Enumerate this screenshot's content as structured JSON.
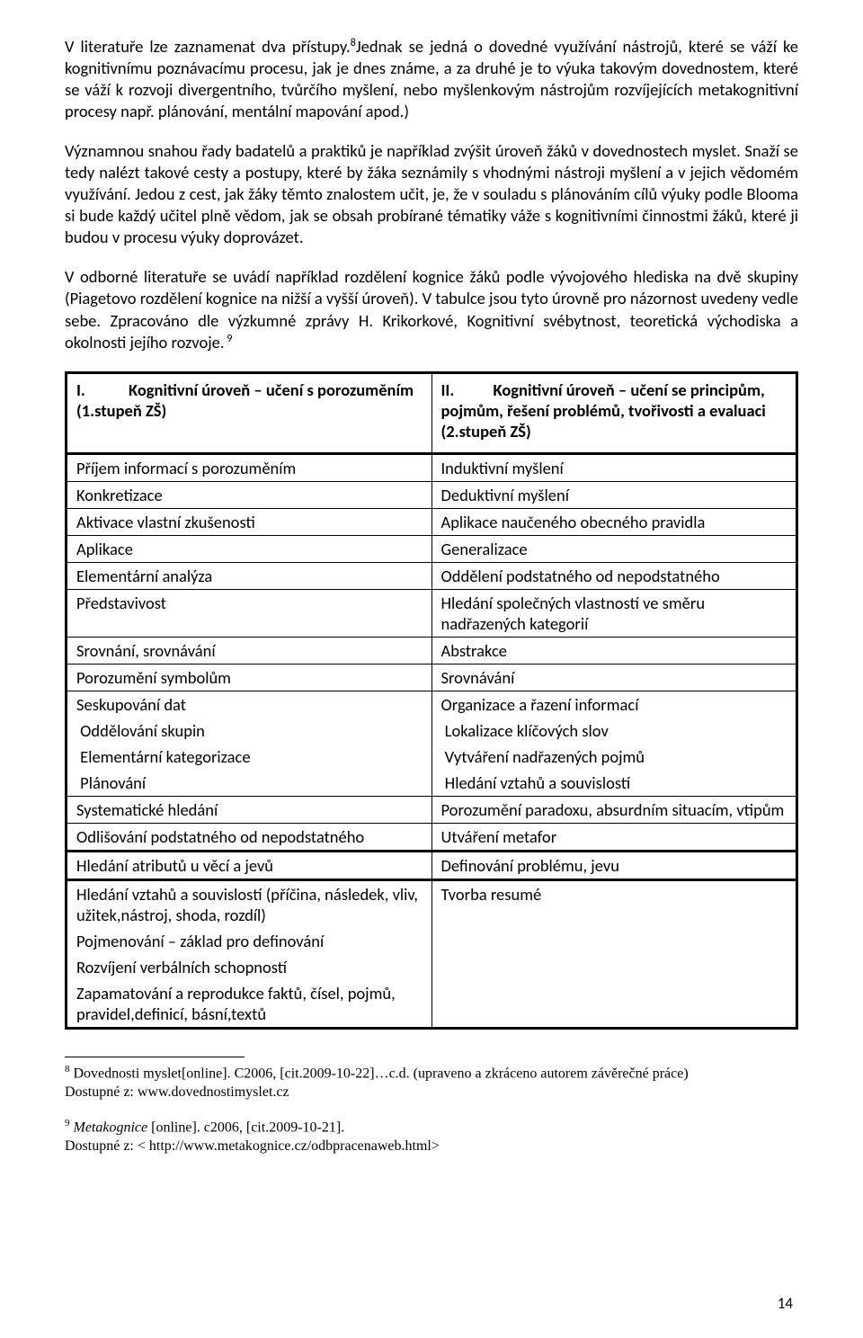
{
  "paragraphs": {
    "p1a": " V literatuře lze zaznamenat dva přístupy.",
    "p1sup": "8",
    "p1b": "Jednak se jedná o dovedné využívání nástrojů, které se váží ke kognitivnímu poznávacímu procesu, jak je dnes známe, a za druhé je to výuka takovým dovednostem, které se váží k rozvoji divergentního, tvůrčího myšlení, nebo myšlenkovým nástrojům rozvíjejících metakognitivní procesy např. plánování, mentální mapování apod.)",
    "p2": " Významnou snahou řady badatelů a praktiků je například zvýšit úroveň žáků v dovednostech myslet. Snaží se tedy nalézt takové cesty a postupy, které by žáka seznámily s vhodnými nástroji myšlení a v jejich vědomém využívání. Jedou z cest, jak žáky těmto znalostem učit, je, že v souladu s plánováním cílů výuky podle Blooma si bude každý učitel plně vědom, jak se obsah probírané tématiky váže s kognitivními činnostmi žáků, které ji budou v procesu výuky doprovázet.",
    "p3a": " V odborné literatuře se uvádí například rozdělení kognice žáků podle vývojového hlediska na dvě skupiny (Piagetovo rozdělení kognice na nižší a vyšší úroveň). V tabulce jsou tyto úrovně pro názornost uvedeny vedle sebe. Zpracováno dle výzkumné zprávy H. Krikorkové, Kognitivní svébytnost, teoretická východiska a okolnosti jejího rozvoje.",
    "p3sup": " 9"
  },
  "table": {
    "header": {
      "left_roman": "I.",
      "left_title": "Kognitivní úroveň – učení s porozuměním (1.stupeň ZŠ)",
      "right_roman": "II.",
      "right_title": "Kognitivní úroveň – učení se principům, pojmům, řešení problémů, tvořivosti a evaluaci (2.stupeň ZŠ)"
    },
    "rows": [
      {
        "l": "Příjem informací s porozuměním",
        "r": "Induktivní myšlení"
      },
      {
        "l": "Konkretizace",
        "r": "Deduktivní myšlení"
      },
      {
        "l": "Aktivace vlastní zkušenosti",
        "r": "Aplikace naučeného obecného pravidla"
      },
      {
        "l": "Aplikace",
        "r": "Generalizace"
      },
      {
        "l": "Elementární analýza",
        "r": "Oddělení podstatného od nepodstatného"
      },
      {
        "l": "Představivost",
        "r": "Hledání společných vlastností ve směru nadřazených kategorií"
      },
      {
        "l": "Srovnání, srovnávání",
        "r": "Abstrakce"
      },
      {
        "l": "Porozumění symbolům",
        "r": "Srovnávání"
      },
      {
        "l": "Seskupování dat",
        "r": "Organizace a řazení informací"
      },
      {
        "l": " Oddělování skupin",
        "r": " Lokalizace klíčových slov"
      },
      {
        "l": " Elementární kategorizace",
        "r": " Vytváření nadřazených pojmů"
      },
      {
        "l": " Plánování",
        "r": " Hledání vztahů a souvislostí"
      },
      {
        "l": "Systematické hledání",
        "r": "Porozumění paradoxu, absurdním situacím, vtipům"
      },
      {
        "l": "Odlišování podstatného od nepodstatného",
        "r": "Utváření metafor"
      },
      {
        "l": "Hledání atributů u věcí a jevů",
        "r": "Definování problému, jevu"
      },
      {
        "l": "Hledání vztahů a souvislostí (příčina, následek, vliv, užitek,nástroj, shoda, rozdíl)",
        "r": "Tvorba resumé"
      },
      {
        "l": "Pojmenování – základ pro definování",
        "r": ""
      },
      {
        "l": "Rozvíjení verbálních schopností",
        "r": ""
      },
      {
        "l": "Zapamatování a reprodukce faktů, čísel, pojmů, pravidel,definicí, básní,textů",
        "r": ""
      }
    ]
  },
  "footnotes": {
    "f8_num": "8",
    "f8a": " Dovednosti myslet[online]. C2006, [cit.2009-10-22]…c.d. (upraveno a zkráceno autorem závěrečné práce)",
    "f8b": "  Dostupné z: www.dovednostimyslet.cz",
    "f9_num": "9",
    "f9_italic": " Metakognice",
    "f9a": " [online]. c2006, [cit.2009-10-21].",
    "f9b": "   Dostupné z: < http://www.metakognice.cz/odbpracenaweb.html>"
  },
  "page_number": "14"
}
